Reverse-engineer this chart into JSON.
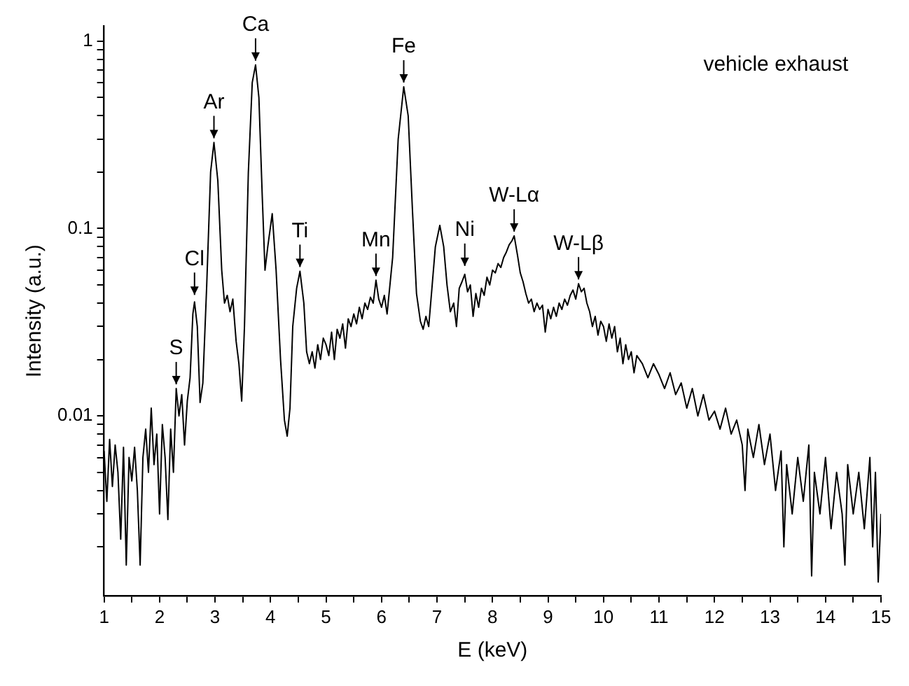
{
  "chart_data": {
    "type": "line",
    "xlabel": "E (keV)",
    "ylabel": "Intensity (a.u.)",
    "log": "y",
    "marker": "none",
    "line_style": "solid",
    "xlim": [
      1,
      15
    ],
    "xticks": [
      1,
      {
        "value": 1.5,
        "label": null
      },
      2,
      {
        "value": 2.5,
        "label": null
      },
      3,
      {
        "value": 3.5,
        "label": null
      },
      4,
      {
        "value": 4.5,
        "label": null
      },
      5,
      {
        "value": 5.5,
        "label": null
      },
      6,
      {
        "value": 6.5,
        "label": null
      },
      7,
      {
        "value": 7.5,
        "label": null
      },
      8,
      {
        "value": 8.5,
        "label": null
      },
      9,
      {
        "value": 9.5,
        "label": null
      },
      10,
      {
        "value": 10.5,
        "label": null
      },
      11,
      {
        "value": 11.5,
        "label": null
      },
      12,
      {
        "value": 12.5,
        "label": null
      },
      13,
      {
        "value": 13.5,
        "label": null
      },
      14,
      {
        "value": 14.5,
        "label": null
      },
      15
    ],
    "ylim": [
      0.0011,
      1.2
    ],
    "yticks": [
      {
        "value": 0.002,
        "label": null
      },
      {
        "value": 0.003,
        "label": null
      },
      {
        "value": 0.004,
        "label": null
      },
      {
        "value": 0.005,
        "label": null
      },
      {
        "value": 0.006,
        "label": null
      },
      {
        "value": 0.007,
        "label": null
      },
      {
        "value": 0.008,
        "label": null
      },
      {
        "value": 0.009,
        "label": null
      },
      0.01,
      {
        "value": 0.02,
        "label": null
      },
      {
        "value": 0.03,
        "label": null
      },
      {
        "value": 0.04,
        "label": null
      },
      {
        "value": 0.05,
        "label": null
      },
      {
        "value": 0.06,
        "label": null
      },
      {
        "value": 0.07,
        "label": null
      },
      {
        "value": 0.08,
        "label": null
      },
      {
        "value": 0.09,
        "label": null
      },
      0.1,
      {
        "value": 0.2,
        "label": null
      },
      {
        "value": 0.3,
        "label": null
      },
      {
        "value": 0.4,
        "label": null
      },
      {
        "value": 0.5,
        "label": null
      },
      {
        "value": 0.6,
        "label": null
      },
      {
        "value": 0.7,
        "label": null
      },
      {
        "value": 0.8,
        "label": null
      },
      {
        "value": 0.9,
        "label": null
      },
      1
    ],
    "series": [
      {
        "color": "#000000",
        "x": [
          1.0,
          1.05,
          1.1,
          1.15,
          1.2,
          1.25,
          1.3,
          1.35,
          1.4,
          1.45,
          1.5,
          1.55,
          1.6,
          1.65,
          1.7,
          1.75,
          1.8,
          1.85,
          1.9,
          1.95,
          2.0,
          2.05,
          2.1,
          2.15,
          2.2,
          2.25,
          2.3,
          2.35,
          2.4,
          2.45,
          2.5,
          2.55,
          2.6,
          2.63,
          2.68,
          2.73,
          2.78,
          2.85,
          2.92,
          2.98,
          3.05,
          3.12,
          3.17,
          3.22,
          3.27,
          3.32,
          3.38,
          3.43,
          3.48,
          3.53,
          3.6,
          3.67,
          3.73,
          3.79,
          3.85,
          3.9,
          3.95,
          4.03,
          4.1,
          4.18,
          4.25,
          4.3,
          4.35,
          4.4,
          4.47,
          4.53,
          4.6,
          4.65,
          4.7,
          4.75,
          4.8,
          4.85,
          4.9,
          4.95,
          5.0,
          5.05,
          5.1,
          5.15,
          5.2,
          5.25,
          5.3,
          5.35,
          5.4,
          5.45,
          5.5,
          5.55,
          5.6,
          5.65,
          5.7,
          5.75,
          5.8,
          5.85,
          5.9,
          5.95,
          6.0,
          6.05,
          6.1,
          6.2,
          6.3,
          6.4,
          6.48,
          6.56,
          6.63,
          6.7,
          6.75,
          6.8,
          6.85,
          6.9,
          6.97,
          7.05,
          7.12,
          7.18,
          7.24,
          7.3,
          7.35,
          7.4,
          7.45,
          7.5,
          7.55,
          7.6,
          7.65,
          7.7,
          7.75,
          7.8,
          7.85,
          7.9,
          7.95,
          8.0,
          8.05,
          8.1,
          8.15,
          8.2,
          8.25,
          8.3,
          8.35,
          8.39,
          8.45,
          8.5,
          8.55,
          8.6,
          8.65,
          8.7,
          8.75,
          8.8,
          8.85,
          8.9,
          8.95,
          9.0,
          9.05,
          9.1,
          9.15,
          9.2,
          9.25,
          9.3,
          9.35,
          9.4,
          9.45,
          9.5,
          9.55,
          9.6,
          9.65,
          9.7,
          9.75,
          9.8,
          9.85,
          9.9,
          9.95,
          10.0,
          10.05,
          10.1,
          10.15,
          10.2,
          10.25,
          10.3,
          10.35,
          10.4,
          10.45,
          10.5,
          10.55,
          10.6,
          10.7,
          10.8,
          10.9,
          11.0,
          11.1,
          11.2,
          11.3,
          11.4,
          11.5,
          11.6,
          11.7,
          11.8,
          11.9,
          12.0,
          12.1,
          12.2,
          12.3,
          12.4,
          12.5,
          12.55,
          12.6,
          12.7,
          12.8,
          12.9,
          13.0,
          13.1,
          13.2,
          13.25,
          13.3,
          13.4,
          13.5,
          13.6,
          13.7,
          13.75,
          13.8,
          13.9,
          14.0,
          14.1,
          14.2,
          14.3,
          14.35,
          14.4,
          14.5,
          14.6,
          14.7,
          14.8,
          14.85,
          14.9,
          14.95,
          15.0
        ],
        "values": [
          0.0065,
          0.0035,
          0.0075,
          0.0042,
          0.007,
          0.005,
          0.0022,
          0.0068,
          0.0016,
          0.006,
          0.0045,
          0.0068,
          0.004,
          0.0016,
          0.006,
          0.0085,
          0.005,
          0.011,
          0.0055,
          0.008,
          0.003,
          0.009,
          0.006,
          0.0028,
          0.0085,
          0.005,
          0.014,
          0.01,
          0.013,
          0.007,
          0.012,
          0.016,
          0.035,
          0.0406,
          0.03,
          0.0118,
          0.015,
          0.05,
          0.2,
          0.288,
          0.18,
          0.06,
          0.04,
          0.044,
          0.036,
          0.042,
          0.025,
          0.019,
          0.012,
          0.03,
          0.2,
          0.6,
          0.747,
          0.5,
          0.15,
          0.06,
          0.08,
          0.12,
          0.06,
          0.02,
          0.0095,
          0.0078,
          0.011,
          0.03,
          0.048,
          0.0592,
          0.04,
          0.022,
          0.019,
          0.022,
          0.018,
          0.024,
          0.02,
          0.026,
          0.024,
          0.021,
          0.028,
          0.02,
          0.029,
          0.026,
          0.031,
          0.023,
          0.033,
          0.03,
          0.035,
          0.031,
          0.038,
          0.033,
          0.04,
          0.037,
          0.043,
          0.04,
          0.053,
          0.042,
          0.038,
          0.044,
          0.035,
          0.07,
          0.3,
          0.571,
          0.4,
          0.12,
          0.045,
          0.032,
          0.029,
          0.034,
          0.03,
          0.045,
          0.08,
          0.104,
          0.08,
          0.05,
          0.036,
          0.04,
          0.03,
          0.048,
          0.052,
          0.057,
          0.046,
          0.05,
          0.034,
          0.045,
          0.038,
          0.048,
          0.044,
          0.055,
          0.05,
          0.06,
          0.058,
          0.065,
          0.062,
          0.07,
          0.075,
          0.082,
          0.086,
          0.0914,
          0.072,
          0.058,
          0.052,
          0.045,
          0.04,
          0.042,
          0.036,
          0.04,
          0.037,
          0.039,
          0.028,
          0.037,
          0.033,
          0.038,
          0.034,
          0.04,
          0.037,
          0.042,
          0.039,
          0.044,
          0.047,
          0.042,
          0.0508,
          0.046,
          0.048,
          0.04,
          0.036,
          0.03,
          0.034,
          0.027,
          0.032,
          0.03,
          0.025,
          0.031,
          0.026,
          0.03,
          0.022,
          0.026,
          0.019,
          0.024,
          0.02,
          0.022,
          0.017,
          0.021,
          0.019,
          0.016,
          0.019,
          0.0166,
          0.014,
          0.017,
          0.013,
          0.015,
          0.011,
          0.014,
          0.01,
          0.013,
          0.0095,
          0.0106,
          0.0085,
          0.011,
          0.008,
          0.0095,
          0.007,
          0.004,
          0.0085,
          0.006,
          0.009,
          0.0055,
          0.008,
          0.004,
          0.0065,
          0.002,
          0.0055,
          0.003,
          0.006,
          0.0035,
          0.007,
          0.0014,
          0.005,
          0.003,
          0.006,
          0.0025,
          0.005,
          0.003,
          0.0016,
          0.0055,
          0.003,
          0.005,
          0.0025,
          0.006,
          0.002,
          0.005,
          0.0013,
          0.003
        ]
      }
    ],
    "annotations": [
      {
        "text": "S",
        "x": 2.3,
        "y": 0.014
      },
      {
        "text": "Cl",
        "x": 2.63,
        "y": 0.042
      },
      {
        "text": "Ar",
        "x": 2.98,
        "y": 0.288
      },
      {
        "text": "Ca",
        "x": 3.73,
        "y": 0.747
      },
      {
        "text": "Ti",
        "x": 4.53,
        "y": 0.0592
      },
      {
        "text": "Mn",
        "x": 5.9,
        "y": 0.053
      },
      {
        "text": "Fe",
        "x": 6.4,
        "y": 0.571
      },
      {
        "text": "Ni",
        "x": 7.5,
        "y": 0.06
      },
      {
        "text": "W-Lα",
        "x": 8.39,
        "y": 0.0914
      },
      {
        "text": "W-Lβ",
        "x": 9.55,
        "y": 0.0508
      },
      "vehicle exhaust"
    ]
  }
}
